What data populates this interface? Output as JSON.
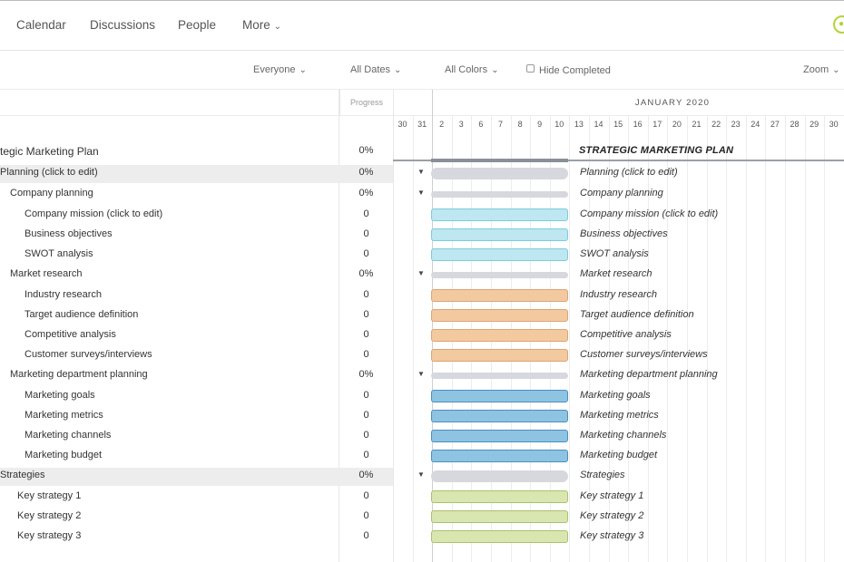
{
  "topnav": {
    "items": [
      {
        "label": "Calendar"
      },
      {
        "label": "Discussions"
      },
      {
        "label": "People"
      },
      {
        "label": "More"
      }
    ]
  },
  "toolbar": {
    "everyone": "Everyone",
    "all_dates": "All Dates",
    "all_colors": "All Colors",
    "hide_completed": "Hide Completed",
    "zoom": "Zoom"
  },
  "columns": {
    "progress": "Progress"
  },
  "timeline": {
    "month": "JANUARY 2020",
    "days": [
      "30",
      "31",
      "2",
      "3",
      "6",
      "7",
      "8",
      "9",
      "10",
      "13",
      "14",
      "15",
      "16",
      "17",
      "20",
      "21",
      "22",
      "23",
      "24",
      "27",
      "28",
      "29",
      "30"
    ]
  },
  "plan": {
    "name": "tegic Marketing Plan",
    "progress": "0%",
    "bar_label": "STRATEGIC MARKETING PLAN"
  },
  "tasks": [
    {
      "name": "Planning (click to edit)",
      "progress": "0%",
      "label": "Planning (click to edit)"
    },
    {
      "name": "Company planning",
      "progress": "0%",
      "label": "Company planning"
    },
    {
      "name": "Company mission (click to edit)",
      "progress": "0",
      "label": "Company mission (click to edit)"
    },
    {
      "name": "Business objectives",
      "progress": "0",
      "label": "Business objectives"
    },
    {
      "name": "SWOT analysis",
      "progress": "0",
      "label": "SWOT analysis"
    },
    {
      "name": "Market research",
      "progress": "0%",
      "label": "Market research"
    },
    {
      "name": "Industry research",
      "progress": "0",
      "label": "Industry research"
    },
    {
      "name": "Target audience definition",
      "progress": "0",
      "label": "Target audience definition"
    },
    {
      "name": "Competitive analysis",
      "progress": "0",
      "label": "Competitive analysis"
    },
    {
      "name": "Customer surveys/interviews",
      "progress": "0",
      "label": "Customer surveys/interviews"
    },
    {
      "name": "Marketing department planning",
      "progress": "0%",
      "label": "Marketing department planning"
    },
    {
      "name": "Marketing goals",
      "progress": "0",
      "label": "Marketing goals"
    },
    {
      "name": "Marketing metrics",
      "progress": "0",
      "label": "Marketing metrics"
    },
    {
      "name": "Marketing channels",
      "progress": "0",
      "label": "Marketing channels"
    },
    {
      "name": "Marketing budget",
      "progress": "0",
      "label": "Marketing budget"
    },
    {
      "name": "Strategies",
      "progress": "0%",
      "label": "Strategies"
    },
    {
      "name": "Key strategy 1",
      "progress": "0",
      "label": "Key strategy 1"
    },
    {
      "name": "Key strategy 2",
      "progress": "0",
      "label": "Key strategy 2"
    },
    {
      "name": "Key strategy 3",
      "progress": "0",
      "label": "Key strategy 3"
    }
  ],
  "colors": {
    "teal": "#bde7f1",
    "orange": "#f3c9a0",
    "blue": "#8ec3e1",
    "green": "#d9e6b0",
    "group": "#d6d8de",
    "accent": "#b6d334"
  },
  "icons": {
    "user": "user-circle-icon",
    "chevron": "chevron-down-icon",
    "collapse": "triangle-down-icon"
  }
}
